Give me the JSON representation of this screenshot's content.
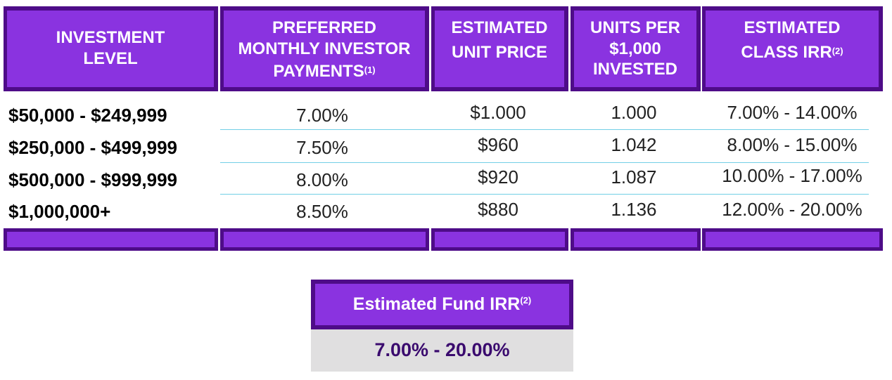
{
  "headers": {
    "investment_level": [
      "INVESTMENT",
      "LEVEL"
    ],
    "payments": [
      "PREFERRED",
      "MONTHLY INVESTOR",
      "PAYMENTS"
    ],
    "payments_note": "(1)",
    "unit_price": [
      "ESTIMATED",
      "UNIT PRICE"
    ],
    "units_per": [
      "UNITS PER",
      "$1,000",
      "INVESTED"
    ],
    "class_irr": [
      "ESTIMATED",
      "CLASS IRR"
    ],
    "class_irr_note": "(2)"
  },
  "rows": [
    {
      "level": "$50,000 - $249,999",
      "payment": "7.00%",
      "price": "$1.000",
      "units": "1.000",
      "irr": "7.00% - 14.00%"
    },
    {
      "level": "$250,000 - $499,999",
      "payment": "7.50%",
      "price": "$960",
      "units": "1.042",
      "irr": "8.00% - 15.00%"
    },
    {
      "level": "$500,000 - $999,999",
      "payment": "8.00%",
      "price": "$920",
      "units": "1.087",
      "irr": "10.00% - 17.00%"
    },
    {
      "level": "$1,000,000+",
      "payment": "8.50%",
      "price": "$880",
      "units": "1.136",
      "irr": "12.00% - 20.00%"
    }
  ],
  "fund": {
    "label": "Estimated Fund IRR",
    "note": "(2)",
    "value": "7.00% - 20.00%"
  },
  "colors": {
    "header_fill": "#8a33e0",
    "header_border": "#4e0c88",
    "row_divider": "#72cfe6",
    "fund_value_bg": "#e0dfe0",
    "fund_value_text": "#3a0a6e"
  }
}
